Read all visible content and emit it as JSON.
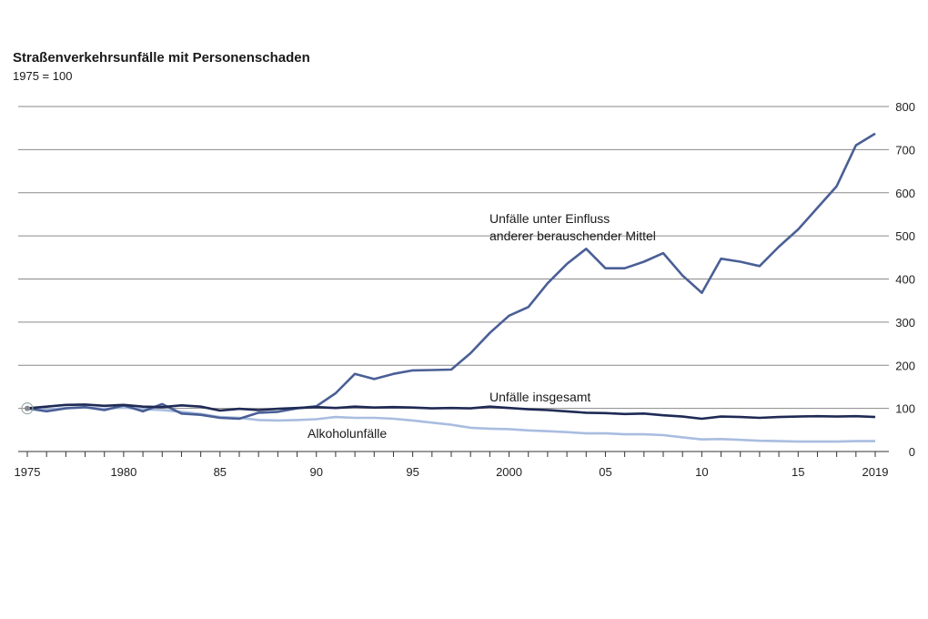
{
  "chart_data": {
    "type": "line",
    "title": "Straßenverkehrsunfälle mit Personenschaden",
    "subtitle": "1975 = 100",
    "xlabel": "",
    "ylabel": "",
    "xlim": [
      1975,
      2019
    ],
    "ylim": [
      0,
      800
    ],
    "yticks": [
      0,
      100,
      200,
      300,
      400,
      500,
      600,
      700,
      800
    ],
    "xticks": [
      {
        "value": 1975,
        "label": "1975"
      },
      {
        "value": 1980,
        "label": "1980"
      },
      {
        "value": 1985,
        "label": "85"
      },
      {
        "value": 1990,
        "label": "90"
      },
      {
        "value": 1995,
        "label": "95"
      },
      {
        "value": 2000,
        "label": "2000"
      },
      {
        "value": 2005,
        "label": "05"
      },
      {
        "value": 2010,
        "label": "10"
      },
      {
        "value": 2015,
        "label": "15"
      },
      {
        "value": 2019,
        "label": "2019"
      }
    ],
    "grid": true,
    "series": [
      {
        "name": "Unfälle unter Einfluss anderer berauschender Mittel",
        "label_lines": [
          "Unfälle unter Einfluss",
          "anderer berauschender Mittel"
        ],
        "color": "#4a5f96",
        "x": [
          1975,
          1976,
          1977,
          1978,
          1979,
          1980,
          1981,
          1982,
          1983,
          1984,
          1985,
          1986,
          1987,
          1988,
          1989,
          1990,
          1991,
          1992,
          1993,
          1994,
          1995,
          1996,
          1997,
          1998,
          1999,
          2000,
          2001,
          2002,
          2003,
          2004,
          2005,
          2006,
          2007,
          2008,
          2009,
          2010,
          2011,
          2012,
          2013,
          2014,
          2015,
          2016,
          2017,
          2018,
          2019
        ],
        "values": [
          100,
          93,
          100,
          103,
          96,
          107,
          93,
          110,
          88,
          85,
          78,
          76,
          90,
          92,
          100,
          105,
          135,
          180,
          168,
          180,
          188,
          189,
          190,
          228,
          275,
          315,
          335,
          390,
          435,
          470,
          425,
          425,
          440,
          460,
          408,
          368,
          447,
          440,
          430,
          475,
          515,
          565,
          615,
          710,
          737
        ]
      },
      {
        "name": "Unfälle insgesamt",
        "label_lines": [
          "Unfälle insgesamt"
        ],
        "color": "#1f2a55",
        "x": [
          1975,
          1976,
          1977,
          1978,
          1979,
          1980,
          1981,
          1982,
          1983,
          1984,
          1985,
          1986,
          1987,
          1988,
          1989,
          1990,
          1991,
          1992,
          1993,
          1994,
          1995,
          1996,
          1997,
          1998,
          1999,
          2000,
          2001,
          2002,
          2003,
          2004,
          2005,
          2006,
          2007,
          2008,
          2009,
          2010,
          2011,
          2012,
          2013,
          2014,
          2015,
          2016,
          2017,
          2018,
          2019
        ],
        "values": [
          100,
          104,
          108,
          109,
          106,
          108,
          104,
          103,
          107,
          104,
          95,
          99,
          96,
          99,
          101,
          103,
          101,
          104,
          102,
          103,
          102,
          100,
          101,
          100,
          104,
          101,
          98,
          96,
          93,
          90,
          89,
          87,
          88,
          84,
          81,
          76,
          81,
          80,
          78,
          80,
          81,
          82,
          81,
          82,
          80
        ]
      },
      {
        "name": "Alkoholunfälle",
        "label_lines": [
          "Alkoholunfälle"
        ],
        "color": "#a9bde0",
        "x": [
          1975,
          1976,
          1977,
          1978,
          1979,
          1980,
          1981,
          1982,
          1983,
          1984,
          1985,
          1986,
          1987,
          1988,
          1989,
          1990,
          1991,
          1992,
          1993,
          1994,
          1995,
          1996,
          1997,
          1998,
          1999,
          2000,
          2001,
          2002,
          2003,
          2004,
          2005,
          2006,
          2007,
          2008,
          2009,
          2010,
          2011,
          2012,
          2013,
          2014,
          2015,
          2016,
          2017,
          2018,
          2019
        ],
        "values": [
          100,
          97,
          101,
          102,
          99,
          102,
          98,
          96,
          92,
          87,
          80,
          78,
          73,
          72,
          73,
          75,
          80,
          78,
          78,
          76,
          72,
          67,
          62,
          55,
          53,
          52,
          49,
          47,
          45,
          42,
          42,
          40,
          40,
          38,
          33,
          28,
          29,
          27,
          25,
          24,
          23,
          23,
          23,
          24,
          24
        ]
      }
    ]
  }
}
